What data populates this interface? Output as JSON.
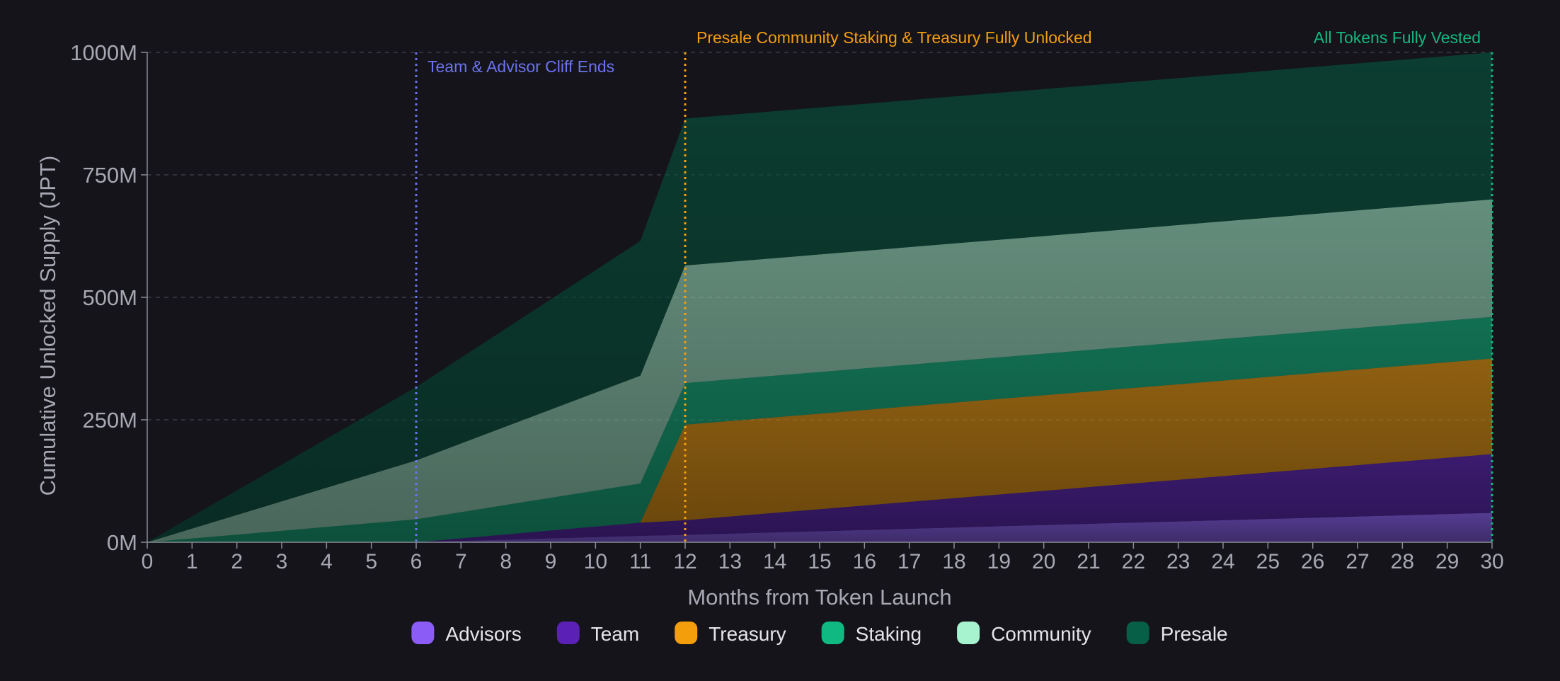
{
  "chart_data": {
    "type": "area",
    "stacked": true,
    "xlabel": "Months from Token Launch",
    "ylabel": "Cumulative Unlocked Supply (JPT)",
    "xlim": [
      0,
      30
    ],
    "ylim": [
      0,
      1000
    ],
    "x_ticks": [
      "0",
      "1",
      "2",
      "3",
      "4",
      "5",
      "6",
      "7",
      "8",
      "9",
      "10",
      "11",
      "12",
      "13",
      "14",
      "15",
      "16",
      "17",
      "18",
      "19",
      "20",
      "21",
      "22",
      "23",
      "24",
      "25",
      "26",
      "27",
      "28",
      "29",
      "30"
    ],
    "y_ticks": [
      {
        "value": 0,
        "label": "0M"
      },
      {
        "value": 250,
        "label": "250M"
      },
      {
        "value": 500,
        "label": "500M"
      },
      {
        "value": 750,
        "label": "750M"
      },
      {
        "value": 1000,
        "label": "1000M"
      }
    ],
    "grid": "horizontal-dashed",
    "legend_position": "bottom",
    "x": [
      0,
      6,
      11,
      12,
      30
    ],
    "series": [
      {
        "name": "Advisors",
        "color": "#8b5cf6",
        "values": [
          0,
          0,
          13,
          15,
          60
        ]
      },
      {
        "name": "Team",
        "color": "#5b21b6",
        "values": [
          0,
          0,
          27,
          30,
          120
        ]
      },
      {
        "name": "Treasury",
        "color": "#f59e0b",
        "values": [
          0,
          0,
          0,
          195,
          195
        ]
      },
      {
        "name": "Staking",
        "color": "#10b981",
        "values": [
          0,
          47,
          80,
          85,
          85
        ]
      },
      {
        "name": "Community",
        "color": "#a7f3d0",
        "values": [
          0,
          120,
          220,
          240,
          240
        ]
      },
      {
        "name": "Presale",
        "color": "#065f46",
        "values": [
          0,
          150,
          275,
          300,
          300
        ]
      }
    ],
    "annotations": [
      {
        "x": 6,
        "label": "Team & Advisor Cliff Ends",
        "color": "#6c73f0",
        "anchor": "start"
      },
      {
        "x": 12,
        "label": "Presale Community Staking & Treasury Fully Unlocked",
        "color": "#f59e0b",
        "anchor": "start"
      },
      {
        "x": 30,
        "label": "All Tokens Fully Vested",
        "color": "#14b87f",
        "anchor": "end"
      }
    ]
  }
}
